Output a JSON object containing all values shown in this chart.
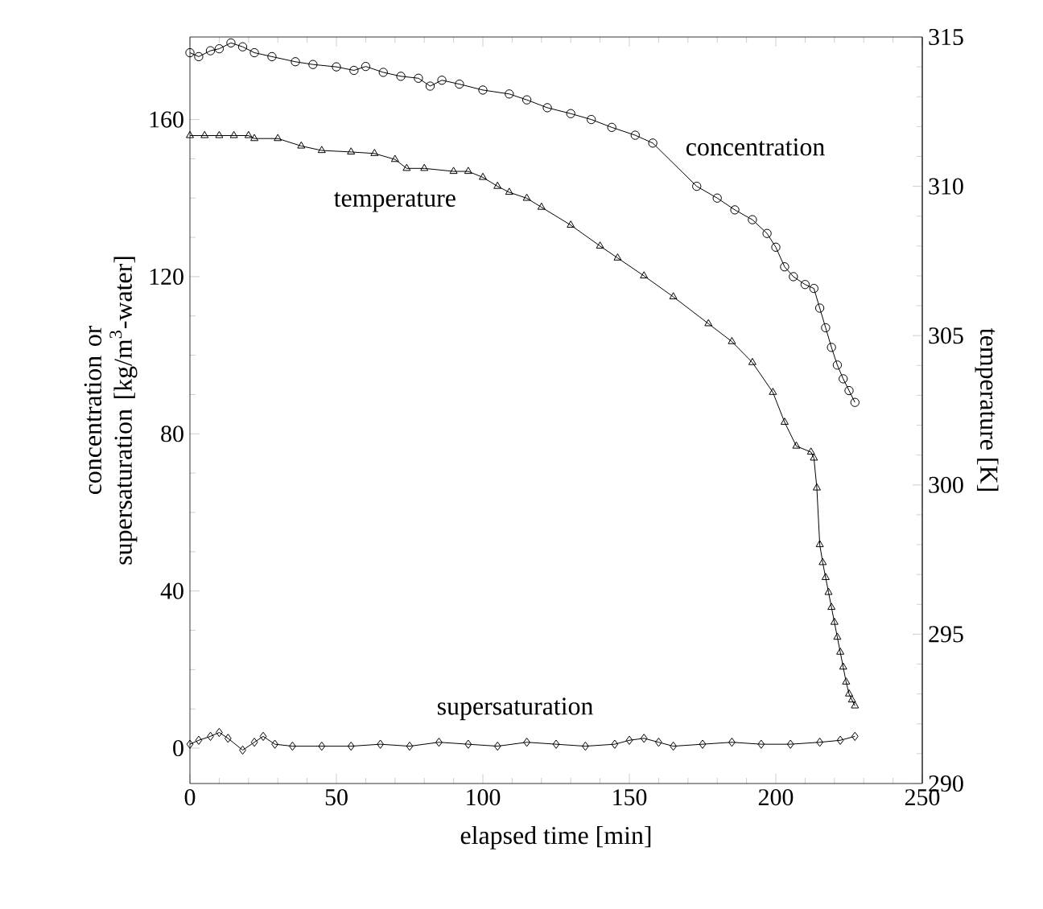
{
  "chart_data": {
    "type": "line",
    "xlabel": "elapsed time [min]",
    "ylabel": "concentration or supersaturation [kg/m$^{3}$-water]",
    "y2label": "temperature [K]",
    "xlim": [
      0,
      250
    ],
    "xticks": [
      0,
      50,
      100,
      150,
      200,
      250
    ],
    "ylim": [
      -9,
      181
    ],
    "yticks": [
      0,
      40,
      80,
      120,
      160
    ],
    "y2lim": [
      290,
      315
    ],
    "y2ticks": [
      290,
      295,
      300,
      305,
      310,
      315
    ],
    "line_style": "solid",
    "series": [
      {
        "name": "concentration",
        "color": "#000000",
        "marker": "circle",
        "x": [
          0,
          3,
          7,
          10,
          14,
          18,
          22,
          28,
          36,
          42,
          50,
          56,
          60,
          66,
          72,
          78,
          82,
          86,
          92,
          100,
          109,
          115,
          122,
          130,
          137,
          144,
          152,
          158,
          173,
          180,
          186,
          192,
          197,
          200,
          203,
          206,
          210,
          213,
          215,
          217,
          219,
          221,
          223,
          225,
          227
        ],
        "values": [
          177,
          176,
          177.5,
          178,
          179.5,
          178.5,
          177,
          176,
          174.7,
          174,
          173.4,
          172.5,
          173.5,
          172,
          171,
          170.5,
          168.5,
          170,
          169,
          167.5,
          166.5,
          165,
          163,
          161.5,
          160,
          158,
          156,
          154,
          143,
          140,
          137,
          134.5,
          131,
          127.5,
          122.5,
          120,
          118,
          117,
          112,
          107,
          102,
          97.5,
          94,
          91,
          88
        ]
      },
      {
        "name": "temperature",
        "color": "#000000",
        "marker": "triangle",
        "axis": "y2",
        "x": [
          0,
          5,
          10,
          15,
          20,
          22,
          30,
          38,
          45,
          55,
          63,
          70,
          74,
          80,
          90,
          95,
          100,
          105,
          109,
          115,
          120,
          130,
          140,
          146,
          155,
          165,
          177,
          185,
          192,
          199,
          203,
          207,
          212,
          213,
          214,
          215,
          216,
          217,
          218,
          219,
          220,
          221,
          222,
          223,
          224,
          225,
          226,
          227
        ],
        "values": [
          311.7,
          311.7,
          311.7,
          311.7,
          311.7,
          311.6,
          311.6,
          311.35,
          311.2,
          311.15,
          311.1,
          310.9,
          310.6,
          310.6,
          310.5,
          310.5,
          310.3,
          310,
          309.8,
          309.6,
          309.3,
          308.7,
          308,
          307.6,
          307,
          306.3,
          305.4,
          304.8,
          304.1,
          303.1,
          302.1,
          301.3,
          301.1,
          300.9,
          299.9,
          298,
          297.4,
          296.9,
          296.4,
          295.9,
          295.4,
          294.9,
          294.4,
          293.9,
          293.4,
          293,
          292.8,
          292.6
        ]
      },
      {
        "name": "supersaturation",
        "color": "#000000",
        "marker": "diamond",
        "x": [
          0,
          3,
          7,
          10,
          13,
          18,
          22,
          25,
          29,
          35,
          45,
          55,
          65,
          75,
          85,
          95,
          105,
          115,
          125,
          135,
          145,
          150,
          155,
          160,
          165,
          175,
          185,
          195,
          205,
          215,
          222,
          227
        ],
        "values": [
          1,
          2,
          3,
          4,
          2.5,
          -0.5,
          1.5,
          3,
          1,
          0.5,
          0.5,
          0.5,
          1,
          0.5,
          1.5,
          1,
          0.5,
          1.5,
          1,
          0.5,
          1,
          2,
          2.5,
          1.5,
          0.5,
          1,
          1.5,
          1,
          1,
          1.5,
          2,
          3
        ]
      }
    ]
  }
}
